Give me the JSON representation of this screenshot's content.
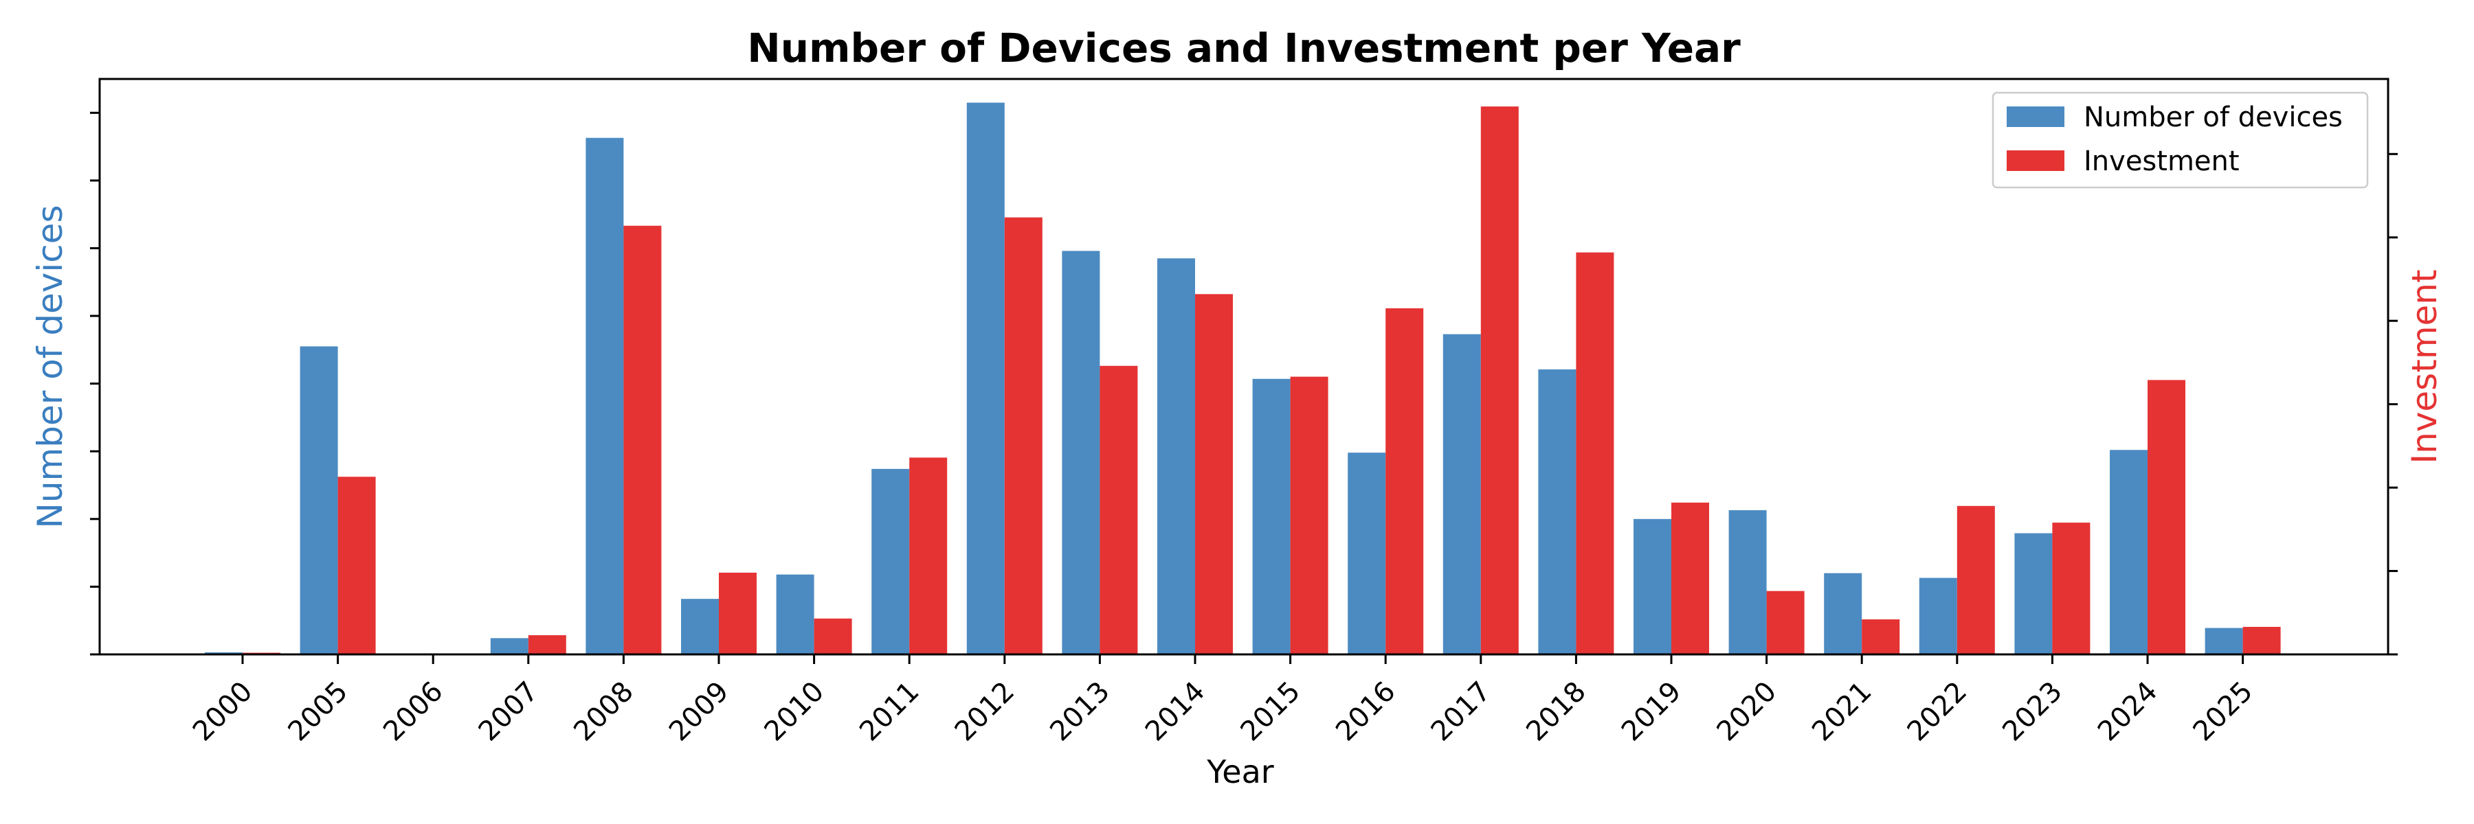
{
  "chart_data": {
    "type": "bar",
    "title": "Number of Devices and Investment per Year",
    "xlabel": "Year",
    "ylabel_left": "Number of devices",
    "ylabel_right": "Investment",
    "categories": [
      "2000",
      "2005",
      "2006",
      "2007",
      "2008",
      "2009",
      "2010",
      "2011",
      "2012",
      "2013",
      "2014",
      "2015",
      "2016",
      "2017",
      "2018",
      "2019",
      "2020",
      "2021",
      "2022",
      "2023",
      "2024",
      "2025"
    ],
    "series": [
      {
        "name": "Number of devices",
        "axis": "left",
        "color": "#4c8bc2",
        "values": [
          0.3,
          45.5,
          0,
          2.4,
          76.3,
          8.2,
          11.8,
          27.4,
          81.5,
          59.6,
          58.5,
          40.7,
          29.8,
          47.3,
          42.1,
          20.0,
          21.3,
          12.0,
          11.3,
          17.9,
          30.2,
          3.9
        ]
      },
      {
        "name": "Investment",
        "axis": "right",
        "color": "#e53333",
        "values": [
          0.2,
          21.3,
          0,
          2.3,
          51.4,
          9.8,
          4.3,
          23.6,
          52.4,
          34.6,
          43.2,
          33.3,
          41.5,
          65.7,
          48.2,
          18.2,
          7.6,
          4.2,
          17.8,
          15.8,
          32.9,
          3.3
        ]
      }
    ],
    "ylim_left": [
      0,
      85
    ],
    "ylim_right": [
      0,
      69
    ],
    "grid": false,
    "legend_position": "top-right",
    "y_tick_labels_visible": false
  }
}
